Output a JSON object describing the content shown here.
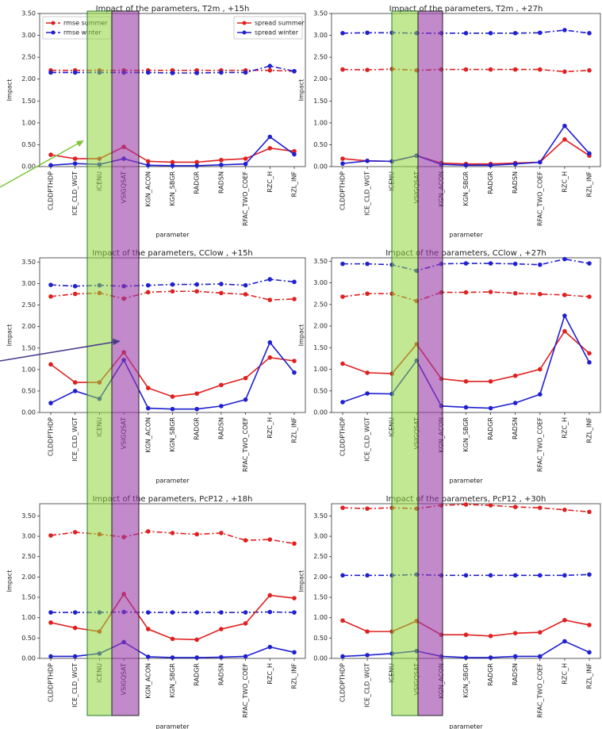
{
  "chart_data": [
    {
      "type": "line",
      "title": "Impact of the parameters, T2m , +15h",
      "xlabel": "parameter",
      "ylabel": "Impact",
      "categories": [
        "CLDDPTHDP",
        "ICE_CLD_WGT",
        "ICENU",
        "VSIGQSAT",
        "KGN_ACON",
        "KGN_SBGR",
        "RADGR",
        "RADSN",
        "RFAC_TWO_COEF",
        "RZC_H",
        "RZL_INF"
      ],
      "ylim": [
        0,
        3.5
      ],
      "yticks": [
        {
          "value": 0,
          "label": "0.00"
        },
        {
          "value": 0.5,
          "label": "0.50"
        },
        {
          "value": 1,
          "label": "1.00"
        },
        {
          "value": 1.5,
          "label": "1.50"
        },
        {
          "value": 2,
          "label": "2.00"
        },
        {
          "value": 2.5,
          "label": "2.50"
        },
        {
          "value": 3,
          "label": "3.00"
        },
        {
          "value": 3.5,
          "label": "3.50"
        }
      ],
      "series": [
        {
          "name": "rmse summer",
          "color": "#e02020",
          "linestyle": "dashdot",
          "legend_loc": "upper left",
          "values": [
            2.2,
            2.2,
            2.2,
            2.2,
            2.2,
            2.2,
            2.2,
            2.2,
            2.2,
            2.2,
            2.18
          ]
        },
        {
          "name": "rmse winter",
          "color": "#2020d0",
          "linestyle": "dashdot",
          "legend_loc": "upper left",
          "values": [
            2.15,
            2.15,
            2.15,
            2.15,
            2.15,
            2.14,
            2.14,
            2.15,
            2.15,
            2.3,
            2.18
          ]
        },
        {
          "name": "spread summer",
          "color": "#e02020",
          "linestyle": "solid",
          "legend_loc": "upper right",
          "values": [
            0.27,
            0.18,
            0.18,
            0.45,
            0.12,
            0.1,
            0.1,
            0.15,
            0.18,
            0.42,
            0.35
          ]
        },
        {
          "name": "spread winter",
          "color": "#2020d0",
          "linestyle": "solid",
          "legend_loc": "upper right",
          "values": [
            0.03,
            0.07,
            0.05,
            0.18,
            0.03,
            0.02,
            0.02,
            0.04,
            0.06,
            0.68,
            0.28
          ]
        }
      ]
    },
    {
      "type": "line",
      "title": "Impact of the parameters, T2m , +27h",
      "xlabel": "parameter",
      "ylabel": "Impact",
      "categories": [
        "CLDDPTHDP",
        "ICE_CLD_WGT",
        "ICENU",
        "VSIGQSAT",
        "KGN_ACON",
        "KGN_SBGR",
        "RADGR",
        "RADSN",
        "RFAC_TWO_COEF",
        "RZC_H",
        "RZL_INF"
      ],
      "ylim": [
        0,
        3.5
      ],
      "yticks": [
        {
          "value": 0,
          "label": "0.00"
        },
        {
          "value": 0.5,
          "label": "0.50"
        },
        {
          "value": 1,
          "label": "1.00"
        },
        {
          "value": 1.5,
          "label": "1.50"
        },
        {
          "value": 2,
          "label": "2.00"
        },
        {
          "value": 2.5,
          "label": "2.50"
        },
        {
          "value": 3,
          "label": "3.00"
        },
        {
          "value": 3.5,
          "label": "3.50"
        }
      ],
      "series": [
        {
          "color": "#e02020",
          "linestyle": "dashdot",
          "values": [
            2.22,
            2.21,
            2.23,
            2.2,
            2.22,
            2.22,
            2.22,
            2.22,
            2.22,
            2.17,
            2.2
          ]
        },
        {
          "color": "#2020d0",
          "linestyle": "dashdot",
          "values": [
            3.05,
            3.06,
            3.06,
            3.05,
            3.05,
            3.05,
            3.05,
            3.05,
            3.06,
            3.12,
            3.05
          ]
        },
        {
          "color": "#e02020",
          "linestyle": "solid",
          "values": [
            0.18,
            0.13,
            0.12,
            0.25,
            0.08,
            0.06,
            0.06,
            0.08,
            0.1,
            0.62,
            0.25
          ]
        },
        {
          "color": "#2020d0",
          "linestyle": "solid",
          "values": [
            0.07,
            0.13,
            0.12,
            0.25,
            0.05,
            0.03,
            0.03,
            0.06,
            0.1,
            0.93,
            0.3
          ]
        }
      ]
    },
    {
      "type": "line",
      "title": "Impact of the parameters, CClow , +15h",
      "xlabel": "parameter",
      "ylabel": "Impact",
      "categories": [
        "CLDDPTHDP",
        "ICE_CLD_WGT",
        "ICENU",
        "VSIGQSAT",
        "KGN_ACON",
        "KGN_SBGR",
        "RADGR",
        "RADSN",
        "RFAC_TWO_COEF",
        "RZC_H",
        "RZL_INF"
      ],
      "ylim": [
        0,
        3.6
      ],
      "yticks": [
        {
          "value": 0,
          "label": "0.00"
        },
        {
          "value": 0.5,
          "label": "0.50"
        },
        {
          "value": 1,
          "label": "1.00"
        },
        {
          "value": 1.5,
          "label": "1.50"
        },
        {
          "value": 2,
          "label": "2.00"
        },
        {
          "value": 2.5,
          "label": "2.50"
        },
        {
          "value": 3,
          "label": "3.00"
        },
        {
          "value": 3.5,
          "label": "3.50"
        }
      ],
      "series": [
        {
          "color": "#e02020",
          "linestyle": "dashdot",
          "values": [
            2.7,
            2.76,
            2.78,
            2.65,
            2.8,
            2.82,
            2.82,
            2.78,
            2.75,
            2.62,
            2.64
          ]
        },
        {
          "color": "#2020d0",
          "linestyle": "dashdot",
          "values": [
            2.97,
            2.94,
            2.96,
            2.94,
            2.96,
            2.98,
            2.98,
            2.99,
            2.96,
            3.1,
            3.04
          ]
        },
        {
          "color": "#e02020",
          "linestyle": "solid",
          "values": [
            1.12,
            0.7,
            0.7,
            1.4,
            0.57,
            0.37,
            0.44,
            0.64,
            0.8,
            1.28,
            1.2
          ]
        },
        {
          "color": "#2020d0",
          "linestyle": "solid",
          "values": [
            0.22,
            0.5,
            0.32,
            1.22,
            0.1,
            0.08,
            0.08,
            0.15,
            0.3,
            1.63,
            0.93
          ]
        }
      ]
    },
    {
      "type": "line",
      "title": "Impact of the parameters, CClow , +27h",
      "xlabel": "parameter",
      "ylabel": "Impact",
      "categories": [
        "CLDDPTHDP",
        "ICE_CLD_WGT",
        "ICENU",
        "VSIGQSAT",
        "KGN_ACON",
        "KGN_SBGR",
        "RADGR",
        "RADSN",
        "RFAC_TWO_COEF",
        "RZC_H",
        "RZL_INF"
      ],
      "ylim": [
        0,
        3.58
      ],
      "yticks": [
        {
          "value": 0,
          "label": "0.00"
        },
        {
          "value": 0.5,
          "label": "0.50"
        },
        {
          "value": 1,
          "label": "1.00"
        },
        {
          "value": 1.5,
          "label": "1.50"
        },
        {
          "value": 2,
          "label": "2.00"
        },
        {
          "value": 2.5,
          "label": "2.50"
        },
        {
          "value": 3,
          "label": "3.00"
        },
        {
          "value": 3.5,
          "label": "3.50"
        }
      ],
      "series": [
        {
          "color": "#e02020",
          "linestyle": "dashdot",
          "values": [
            2.68,
            2.75,
            2.75,
            2.58,
            2.78,
            2.78,
            2.79,
            2.76,
            2.74,
            2.72,
            2.68
          ]
        },
        {
          "color": "#2020d0",
          "linestyle": "dashdot",
          "values": [
            3.44,
            3.44,
            3.42,
            3.28,
            3.44,
            3.45,
            3.45,
            3.44,
            3.42,
            3.55,
            3.45
          ]
        },
        {
          "color": "#e02020",
          "linestyle": "solid",
          "values": [
            1.13,
            0.92,
            0.9,
            1.58,
            0.78,
            0.72,
            0.72,
            0.85,
            1.0,
            1.88,
            1.37
          ]
        },
        {
          "color": "#2020d0",
          "linestyle": "solid",
          "values": [
            0.24,
            0.44,
            0.43,
            1.2,
            0.15,
            0.12,
            0.1,
            0.22,
            0.42,
            2.24,
            1.16
          ]
        }
      ]
    },
    {
      "type": "line",
      "title": "Impact of the parameters, PcP12 , +18h",
      "xlabel": "parameter",
      "ylabel": "Impact",
      "categories": [
        "CLDDPTHDP",
        "ICE_CLD_WGT",
        "ICENU",
        "VSIGQSAT",
        "KGN_ACON",
        "KGN_SBGR",
        "RADGR",
        "RADSN",
        "RFAC_TWO_COEF",
        "RZC_H",
        "RZL_INF"
      ],
      "ylim": [
        0,
        3.8
      ],
      "yticks": [
        {
          "value": 0,
          "label": "0.00"
        },
        {
          "value": 0.5,
          "label": "0.50"
        },
        {
          "value": 1,
          "label": "1.00"
        },
        {
          "value": 1.5,
          "label": "1.50"
        },
        {
          "value": 2,
          "label": "2.00"
        },
        {
          "value": 2.5,
          "label": "2.50"
        },
        {
          "value": 3,
          "label": "3.00"
        },
        {
          "value": 3.5,
          "label": "3.50"
        }
      ],
      "series": [
        {
          "color": "#e02020",
          "linestyle": "dashdot",
          "values": [
            3.02,
            3.1,
            3.05,
            2.98,
            3.12,
            3.08,
            3.05,
            3.08,
            2.9,
            2.92,
            2.82
          ]
        },
        {
          "color": "#2020d0",
          "linestyle": "dashdot",
          "values": [
            1.13,
            1.13,
            1.13,
            1.14,
            1.13,
            1.13,
            1.13,
            1.13,
            1.13,
            1.14,
            1.13
          ]
        },
        {
          "color": "#e02020",
          "linestyle": "solid",
          "values": [
            0.88,
            0.75,
            0.66,
            1.58,
            0.72,
            0.48,
            0.46,
            0.72,
            0.86,
            1.55,
            1.48
          ]
        },
        {
          "color": "#2020d0",
          "linestyle": "solid",
          "values": [
            0.05,
            0.05,
            0.12,
            0.4,
            0.04,
            0.02,
            0.02,
            0.03,
            0.05,
            0.28,
            0.15
          ]
        }
      ]
    },
    {
      "type": "line",
      "title": "Impact of the parameters, PcP12 , +30h",
      "xlabel": "parameter",
      "ylabel": "Impact",
      "categories": [
        "CLDDPTHDP",
        "ICE_CLD_WGT",
        "ICENU",
        "VSIGQSAT",
        "KGN_ACON",
        "KGN_SBGR",
        "RADGR",
        "RADSN",
        "RFAC_TWO_COEF",
        "RZC_H",
        "RZL_INF"
      ],
      "ylim": [
        0,
        3.8
      ],
      "yticks": [
        {
          "value": 0,
          "label": "0.00"
        },
        {
          "value": 0.5,
          "label": "0.50"
        },
        {
          "value": 1,
          "label": "1.00"
        },
        {
          "value": 1.5,
          "label": "1.50"
        },
        {
          "value": 2,
          "label": "2.00"
        },
        {
          "value": 2.5,
          "label": "2.50"
        },
        {
          "value": 3,
          "label": "3.00"
        },
        {
          "value": 3.5,
          "label": "3.50"
        }
      ],
      "series": [
        {
          "color": "#e02020",
          "linestyle": "dashdot",
          "values": [
            3.7,
            3.68,
            3.7,
            3.68,
            3.76,
            3.78,
            3.76,
            3.72,
            3.7,
            3.65,
            3.6
          ]
        },
        {
          "color": "#2020d0",
          "linestyle": "dashdot",
          "values": [
            2.04,
            2.04,
            2.04,
            2.06,
            2.04,
            2.04,
            2.04,
            2.04,
            2.04,
            2.04,
            2.06
          ]
        },
        {
          "color": "#e02020",
          "linestyle": "solid",
          "values": [
            0.93,
            0.66,
            0.66,
            0.92,
            0.58,
            0.58,
            0.55,
            0.62,
            0.64,
            0.94,
            0.82
          ]
        },
        {
          "color": "#2020d0",
          "linestyle": "solid",
          "values": [
            0.05,
            0.08,
            0.12,
            0.18,
            0.05,
            0.02,
            0.02,
            0.05,
            0.05,
            0.42,
            0.15
          ]
        }
      ]
    }
  ]
}
